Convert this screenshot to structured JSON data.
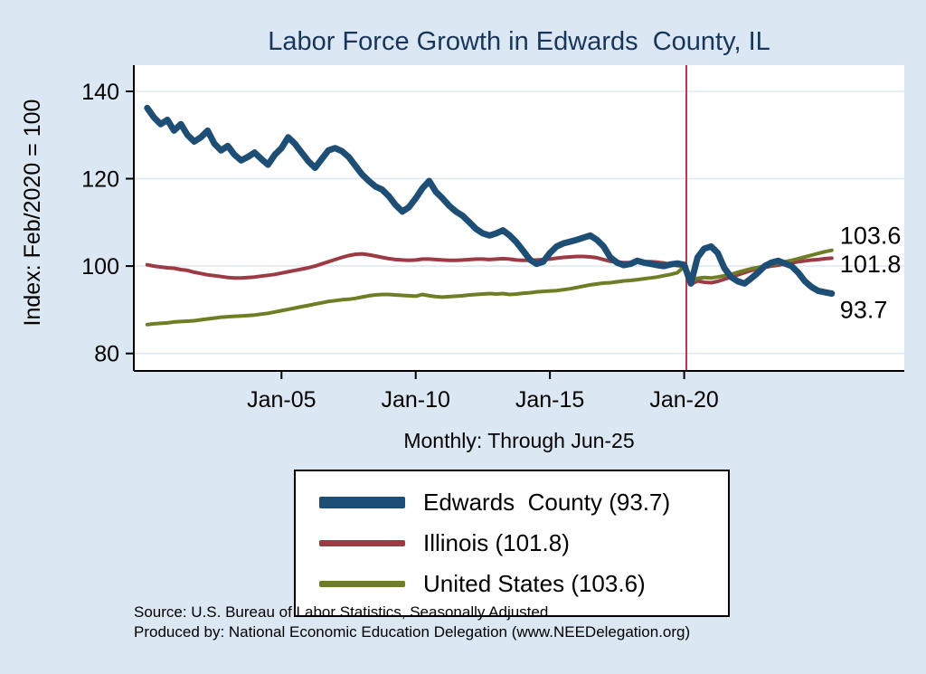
{
  "title": "Labor Force Growth in Edwards  County, IL",
  "y_axis_label": "Index: Feb/2020 = 100",
  "subtitle": "Monthly: Through Jun-25",
  "source_line1": "Source: U.S. Bureau of Labor Statistics, Seasonally Adjusted",
  "source_line2": "Produced by: National Economic Education Delegation (www.NEEDelegation.org)",
  "colors": {
    "background": "#dbe7f2",
    "title": "#17365d",
    "edwards": "#1d4f76",
    "illinois": "#9d3b45",
    "united_states": "#6f7d24",
    "vline": "#c2354b",
    "gridline": "#dfe8f2"
  },
  "legend": {
    "items": [
      {
        "label": "Edwards  County (93.7)"
      },
      {
        "label": "Illinois (101.8)"
      },
      {
        "label": "United States (103.6)"
      }
    ]
  },
  "chart_data": {
    "type": "line",
    "title": "Labor Force Growth in Edwards  County, IL",
    "xlabel": "Monthly: Through Jun-25",
    "ylabel": "Index: Feb/2020 = 100",
    "x_unit": "decimal_year",
    "x_start": 2000.0,
    "x_step": 0.25,
    "xlim": [
      1999.5,
      2028.2
    ],
    "ylim": [
      76,
      146
    ],
    "y_ticks": [
      80,
      100,
      120,
      140
    ],
    "x_ticks": [
      {
        "value": 2005,
        "label": "Jan-05"
      },
      {
        "value": 2010,
        "label": "Jan-10"
      },
      {
        "value": 2015,
        "label": "Jan-15"
      },
      {
        "value": 2020,
        "label": "Jan-20"
      }
    ],
    "vline": {
      "x": 2020.083,
      "color": "#c2354b",
      "meaning": "Feb-2020 reference line"
    },
    "grid": true,
    "legend_position": "bottom",
    "series": [
      {
        "name": "Edwards County",
        "final_value": 93.7,
        "color": "#1d4f76",
        "width": 7,
        "values": [
          136.2,
          134.0,
          132.5,
          133.5,
          131.0,
          132.5,
          130.0,
          128.5,
          129.5,
          131.0,
          128.0,
          126.5,
          127.5,
          125.5,
          124.2,
          125.0,
          126.0,
          124.5,
          123.2,
          125.5,
          127.0,
          129.5,
          128.0,
          126.0,
          124.0,
          122.5,
          124.5,
          126.5,
          127.0,
          126.3,
          125.0,
          123.0,
          121.0,
          119.5,
          118.2,
          117.5,
          116.0,
          114.0,
          112.5,
          113.5,
          115.5,
          117.8,
          119.5,
          117.0,
          115.5,
          113.8,
          112.5,
          111.5,
          110.0,
          108.5,
          107.5,
          107.0,
          107.5,
          108.2,
          107.0,
          105.5,
          103.5,
          101.5,
          100.5,
          101.0,
          103.0,
          104.5,
          105.2,
          105.6,
          106.0,
          106.5,
          107.0,
          106.0,
          104.5,
          102.0,
          100.8,
          100.2,
          100.5,
          101.2,
          100.8,
          100.5,
          100.2,
          100.0,
          100.4,
          100.6,
          100.3,
          96.0,
          102.0,
          104.0,
          104.5,
          103.0,
          99.5,
          97.5,
          96.5,
          96.0,
          97.2,
          98.5,
          100.0,
          100.8,
          101.2,
          100.6,
          100.0,
          98.5,
          96.5,
          95.2,
          94.3,
          94.0,
          93.7
        ]
      },
      {
        "name": "Illinois",
        "final_value": 101.8,
        "color": "#9d3b45",
        "width": 4,
        "values": [
          100.3,
          100.0,
          99.8,
          99.6,
          99.5,
          99.2,
          99.0,
          98.6,
          98.3,
          98.0,
          97.8,
          97.6,
          97.4,
          97.3,
          97.3,
          97.4,
          97.5,
          97.7,
          97.9,
          98.1,
          98.4,
          98.7,
          99.0,
          99.3,
          99.6,
          100.0,
          100.5,
          101.0,
          101.5,
          102.0,
          102.4,
          102.7,
          102.8,
          102.6,
          102.3,
          102.0,
          101.7,
          101.5,
          101.4,
          101.3,
          101.4,
          101.6,
          101.6,
          101.5,
          101.4,
          101.3,
          101.3,
          101.4,
          101.5,
          101.6,
          101.6,
          101.5,
          101.6,
          101.7,
          101.6,
          101.4,
          101.3,
          101.3,
          101.4,
          101.5,
          101.6,
          101.8,
          102.0,
          102.1,
          102.2,
          102.2,
          102.1,
          101.9,
          101.5,
          101.1,
          100.9,
          100.8,
          100.8,
          100.9,
          101.0,
          101.0,
          100.9,
          100.7,
          100.4,
          100.1,
          100.0,
          95.8,
          96.6,
          96.3,
          96.2,
          96.5,
          97.0,
          97.5,
          98.0,
          98.5,
          99.0,
          99.4,
          99.7,
          100.0,
          100.2,
          100.5,
          100.7,
          101.0,
          101.2,
          101.4,
          101.5,
          101.7,
          101.8
        ]
      },
      {
        "name": "United States",
        "final_value": 103.6,
        "color": "#6f7d24",
        "width": 4,
        "values": [
          86.6,
          86.8,
          86.9,
          87.0,
          87.2,
          87.3,
          87.4,
          87.5,
          87.7,
          87.9,
          88.1,
          88.3,
          88.4,
          88.5,
          88.6,
          88.7,
          88.8,
          89.0,
          89.2,
          89.5,
          89.8,
          90.1,
          90.4,
          90.7,
          91.0,
          91.3,
          91.6,
          91.9,
          92.1,
          92.3,
          92.4,
          92.6,
          92.9,
          93.2,
          93.4,
          93.5,
          93.5,
          93.4,
          93.3,
          93.2,
          93.1,
          93.5,
          93.2,
          93.0,
          92.9,
          93.0,
          93.1,
          93.2,
          93.4,
          93.5,
          93.6,
          93.7,
          93.6,
          93.7,
          93.5,
          93.6,
          93.8,
          93.9,
          94.1,
          94.2,
          94.3,
          94.4,
          94.6,
          94.8,
          95.1,
          95.4,
          95.7,
          95.9,
          96.1,
          96.2,
          96.4,
          96.6,
          96.7,
          96.9,
          97.1,
          97.3,
          97.5,
          97.8,
          98.1,
          98.5,
          99.9,
          96.4,
          97.2,
          97.4,
          97.3,
          97.5,
          97.8,
          98.1,
          98.6,
          99.0,
          99.4,
          99.7,
          100.0,
          100.3,
          100.7,
          101.0,
          101.3,
          101.7,
          102.1,
          102.5,
          102.9,
          103.3,
          103.6
        ]
      }
    ],
    "end_labels": [
      {
        "text": "103.6",
        "x": 2025.8,
        "y": 107.0
      },
      {
        "text": "101.8",
        "x": 2025.8,
        "y": 100.4
      },
      {
        "text": "93.7",
        "x": 2025.8,
        "y": 90.0
      }
    ]
  }
}
